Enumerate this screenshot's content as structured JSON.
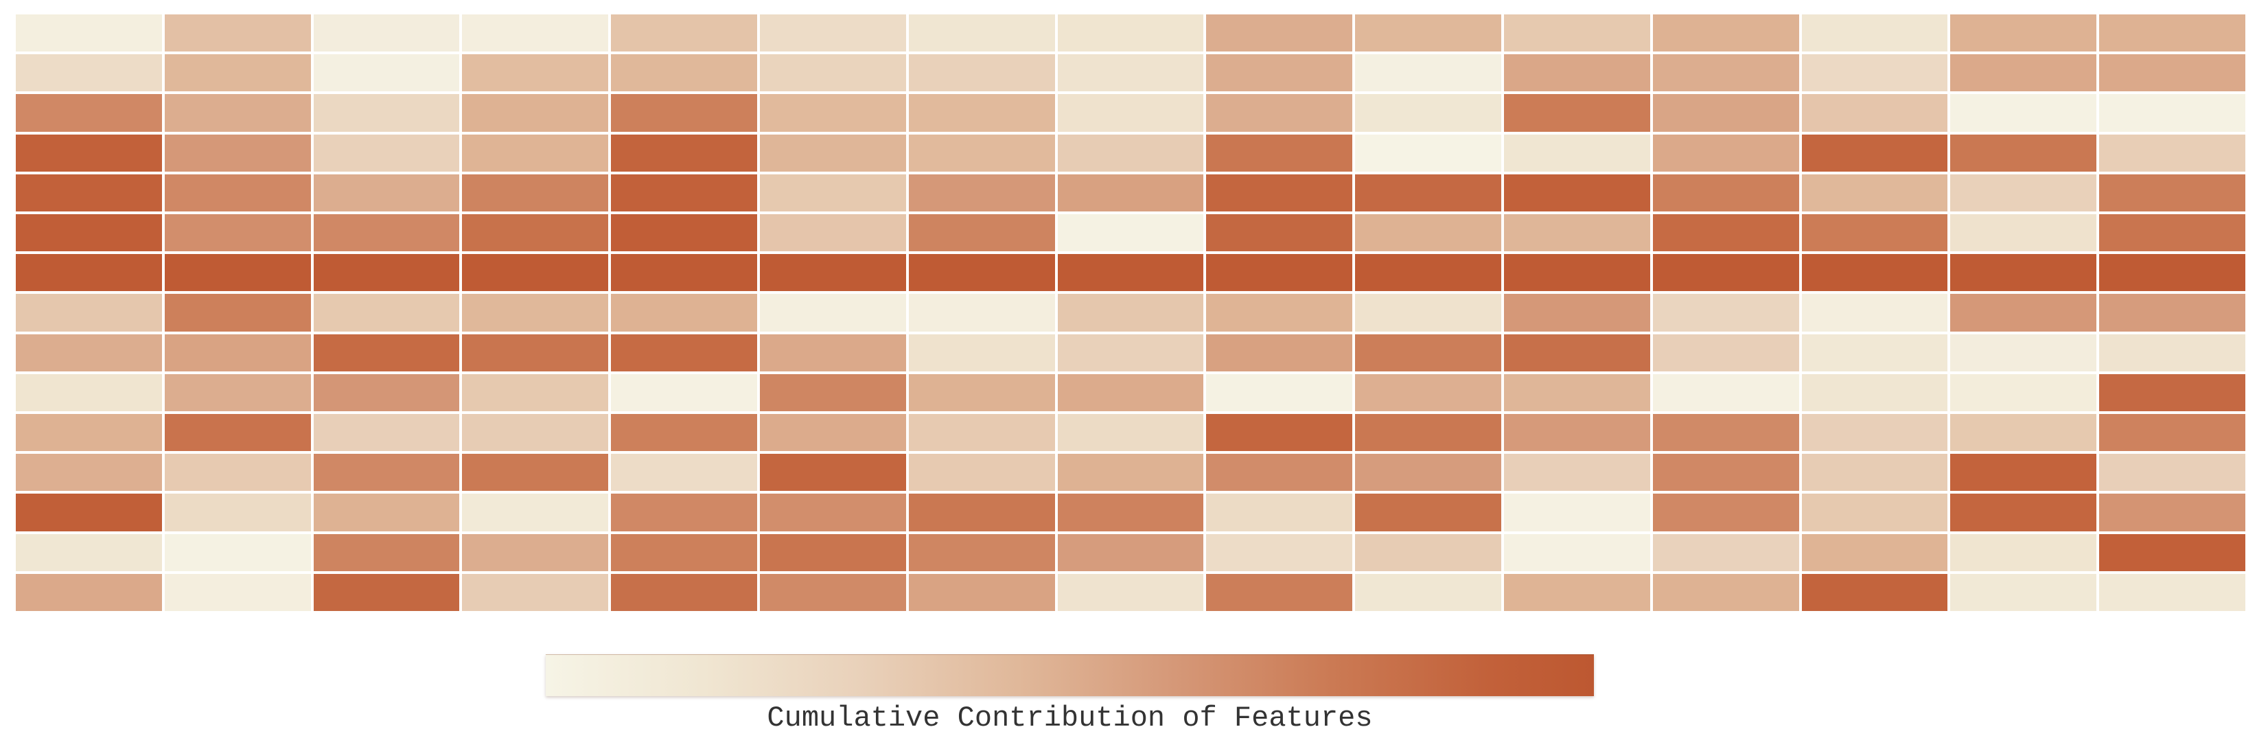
{
  "figure": {
    "background": "#ffffff"
  },
  "chart_data": {
    "type": "heatmap",
    "rows": 15,
    "cols": 15,
    "vmin": 0,
    "vmax": 1,
    "grid_gaps": "white",
    "legend_position": "bottom-center",
    "colorbar_label": "Cumulative Contribution of Features",
    "colorbar_label_color": "#333333",
    "colormap": {
      "stops": [
        {
          "pos": 0.0,
          "color": "#f6f4e6"
        },
        {
          "pos": 0.15,
          "color": "#f0e6d2"
        },
        {
          "pos": 0.3,
          "color": "#e9d1ba"
        },
        {
          "pos": 0.45,
          "color": "#e0b89a"
        },
        {
          "pos": 0.6,
          "color": "#d59878"
        },
        {
          "pos": 0.75,
          "color": "#cb7a54"
        },
        {
          "pos": 0.9,
          "color": "#c2613a"
        },
        {
          "pos": 1.0,
          "color": "#bd5831"
        }
      ]
    },
    "values": [
      [
        0.05,
        0.4,
        0.07,
        0.06,
        0.38,
        0.22,
        0.15,
        0.16,
        0.5,
        0.45,
        0.35,
        0.48,
        0.15,
        0.48,
        0.48
      ],
      [
        0.22,
        0.45,
        0.04,
        0.42,
        0.45,
        0.28,
        0.3,
        0.17,
        0.5,
        0.04,
        0.53,
        0.5,
        0.24,
        0.52,
        0.52
      ],
      [
        0.68,
        0.5,
        0.25,
        0.48,
        0.72,
        0.44,
        0.44,
        0.18,
        0.5,
        0.14,
        0.74,
        0.54,
        0.37,
        0.02,
        0.02
      ],
      [
        0.9,
        0.6,
        0.3,
        0.47,
        0.88,
        0.46,
        0.44,
        0.33,
        0.77,
        0.01,
        0.15,
        0.52,
        0.87,
        0.76,
        0.32
      ],
      [
        0.9,
        0.68,
        0.5,
        0.7,
        0.9,
        0.35,
        0.6,
        0.56,
        0.87,
        0.85,
        0.9,
        0.72,
        0.45,
        0.3,
        0.73
      ],
      [
        0.93,
        0.65,
        0.68,
        0.8,
        0.93,
        0.37,
        0.7,
        0.02,
        0.86,
        0.48,
        0.46,
        0.84,
        0.74,
        0.18,
        0.78
      ],
      [
        0.97,
        0.97,
        0.97,
        0.97,
        0.97,
        0.97,
        0.97,
        0.97,
        0.97,
        0.97,
        0.97,
        0.97,
        0.97,
        0.97,
        0.97
      ],
      [
        0.36,
        0.72,
        0.35,
        0.45,
        0.48,
        0.05,
        0.06,
        0.36,
        0.47,
        0.18,
        0.6,
        0.27,
        0.06,
        0.6,
        0.58
      ],
      [
        0.5,
        0.55,
        0.84,
        0.78,
        0.84,
        0.52,
        0.18,
        0.3,
        0.56,
        0.73,
        0.81,
        0.31,
        0.13,
        0.07,
        0.17
      ],
      [
        0.16,
        0.5,
        0.61,
        0.35,
        0.03,
        0.69,
        0.48,
        0.51,
        0.02,
        0.49,
        0.46,
        0.03,
        0.15,
        0.08,
        0.85
      ],
      [
        0.48,
        0.79,
        0.31,
        0.33,
        0.72,
        0.51,
        0.34,
        0.23,
        0.87,
        0.76,
        0.59,
        0.67,
        0.31,
        0.35,
        0.71
      ],
      [
        0.49,
        0.34,
        0.68,
        0.75,
        0.22,
        0.87,
        0.34,
        0.48,
        0.66,
        0.58,
        0.31,
        0.68,
        0.33,
        0.89,
        0.31
      ],
      [
        0.92,
        0.23,
        0.48,
        0.11,
        0.68,
        0.65,
        0.76,
        0.71,
        0.23,
        0.8,
        0.03,
        0.68,
        0.35,
        0.87,
        0.62
      ],
      [
        0.14,
        0.02,
        0.7,
        0.5,
        0.72,
        0.78,
        0.69,
        0.58,
        0.22,
        0.33,
        0.03,
        0.29,
        0.47,
        0.16,
        0.91
      ],
      [
        0.52,
        0.06,
        0.86,
        0.33,
        0.81,
        0.67,
        0.55,
        0.17,
        0.73,
        0.14,
        0.47,
        0.48,
        0.88,
        0.12,
        0.13
      ]
    ]
  }
}
